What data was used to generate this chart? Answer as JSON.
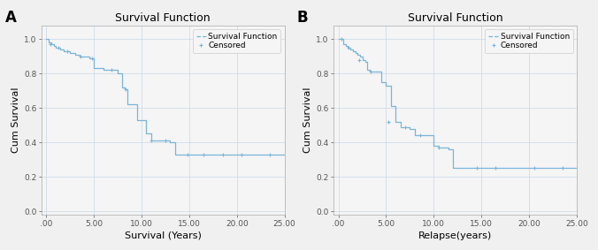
{
  "panel_A": {
    "title": "Survival Function",
    "xlabel": "Survival (Years)",
    "ylabel": "Cum Survival",
    "label": "A",
    "xlim": [
      -0.5,
      25
    ],
    "ylim": [
      -0.02,
      1.08
    ],
    "xticks": [
      0,
      5,
      10,
      15,
      20,
      25
    ],
    "xticklabels": [
      ".00",
      "5.00",
      "10.00",
      "15.00",
      "20.00",
      "25.00"
    ],
    "yticks": [
      0.0,
      0.2,
      0.4,
      0.6,
      0.8,
      1.0
    ],
    "yticklabels": [
      "0.0",
      "0.2",
      "0.4",
      "0.6",
      "0.8",
      "1.0"
    ],
    "survival_x": [
      0,
      0.3,
      0.5,
      0.8,
      1.0,
      1.2,
      1.5,
      1.8,
      2.0,
      2.3,
      2.5,
      2.8,
      3.0,
      3.2,
      3.5,
      4.0,
      4.5,
      5.0,
      5.5,
      6.0,
      6.5,
      7.0,
      7.5,
      8.0,
      8.2,
      8.5,
      9.0,
      9.5,
      10.0,
      10.5,
      11.0,
      11.5,
      12.0,
      12.5,
      13.0,
      13.5,
      14.0,
      14.5,
      15.0,
      16.0,
      17.0,
      18.0,
      19.0,
      20.0,
      21.0,
      22.0,
      23.0,
      24.0,
      25.0
    ],
    "survival_y": [
      1.0,
      0.98,
      0.97,
      0.96,
      0.95,
      0.95,
      0.94,
      0.93,
      0.93,
      0.93,
      0.92,
      0.92,
      0.91,
      0.91,
      0.9,
      0.9,
      0.89,
      0.83,
      0.83,
      0.82,
      0.82,
      0.82,
      0.8,
      0.72,
      0.71,
      0.62,
      0.62,
      0.53,
      0.53,
      0.45,
      0.41,
      0.41,
      0.41,
      0.41,
      0.4,
      0.33,
      0.33,
      0.33,
      0.33,
      0.33,
      0.33,
      0.33,
      0.33,
      0.33,
      0.33,
      0.33,
      0.33,
      0.33,
      0.33
    ],
    "censored_x": [
      0.4,
      1.3,
      2.2,
      3.6,
      4.8,
      6.8,
      8.3,
      11.0,
      12.5,
      14.8,
      16.5,
      18.5,
      20.5,
      23.5
    ],
    "censored_y": [
      0.97,
      0.95,
      0.93,
      0.9,
      0.89,
      0.82,
      0.71,
      0.41,
      0.41,
      0.33,
      0.33,
      0.33,
      0.33,
      0.33
    ],
    "legend_entries": [
      "Survival Function",
      "Censored"
    ]
  },
  "panel_B": {
    "title": "Survival Function",
    "xlabel": "Relapse(years)",
    "ylabel": "Cum Survival",
    "label": "B",
    "xlim": [
      -0.5,
      25
    ],
    "ylim": [
      -0.02,
      1.08
    ],
    "xticks": [
      0,
      5,
      10,
      15,
      20,
      25
    ],
    "xticklabels": [
      ".00",
      "5.00",
      "10.00",
      "15.00",
      "20.00",
      "25.00"
    ],
    "yticks": [
      0.0,
      0.2,
      0.4,
      0.6,
      0.8,
      1.0
    ],
    "yticklabels": [
      "0.0",
      "0.2",
      "0.4",
      "0.6",
      "0.8",
      "1.0"
    ],
    "survival_x": [
      0,
      0.2,
      0.5,
      0.8,
      1.0,
      1.2,
      1.5,
      1.8,
      2.0,
      2.3,
      2.5,
      2.8,
      3.0,
      3.3,
      3.5,
      4.0,
      4.5,
      5.0,
      5.5,
      6.0,
      6.5,
      7.0,
      7.5,
      8.0,
      8.5,
      9.0,
      9.5,
      10.0,
      10.5,
      11.0,
      11.5,
      12.0,
      13.0,
      14.0,
      15.0,
      16.0,
      17.0,
      18.0,
      19.0,
      20.0,
      21.0,
      22.0,
      23.0,
      24.0,
      25.0
    ],
    "survival_y": [
      1.0,
      1.0,
      0.97,
      0.96,
      0.95,
      0.94,
      0.93,
      0.92,
      0.91,
      0.9,
      0.88,
      0.87,
      0.82,
      0.81,
      0.81,
      0.81,
      0.75,
      0.73,
      0.61,
      0.52,
      0.49,
      0.49,
      0.48,
      0.44,
      0.44,
      0.44,
      0.44,
      0.38,
      0.37,
      0.37,
      0.36,
      0.25,
      0.25,
      0.25,
      0.25,
      0.25,
      0.25,
      0.25,
      0.25,
      0.25,
      0.25,
      0.25,
      0.25,
      0.25,
      0.25
    ],
    "censored_x": [
      0.3,
      1.1,
      2.2,
      3.4,
      5.2,
      7.0,
      8.6,
      10.5,
      14.5,
      16.5,
      20.5,
      23.5
    ],
    "censored_y": [
      1.0,
      0.95,
      0.88,
      0.81,
      0.52,
      0.49,
      0.44,
      0.37,
      0.25,
      0.25,
      0.25,
      0.25
    ],
    "legend_entries": [
      "Survival Function",
      "Censored"
    ]
  },
  "figure_bg": "#f0f0f0",
  "axes_bg": "#f5f5f5",
  "grid_color": "#c8d8e8",
  "line_color": "#7ab5d8",
  "tick_fontsize": 6.5,
  "label_fontsize": 8,
  "title_fontsize": 9,
  "legend_fontsize": 6.5,
  "panel_label_fontsize": 12
}
